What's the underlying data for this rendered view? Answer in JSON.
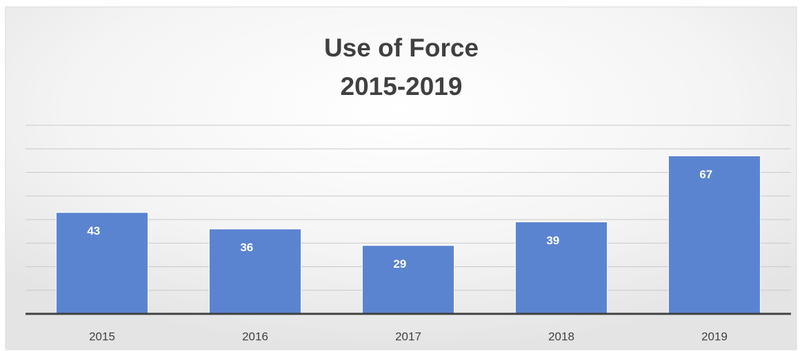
{
  "chart_data": {
    "type": "bar",
    "title": [
      "Use of Force",
      "2015-2019"
    ],
    "categories": [
      "2015",
      "2016",
      "2017",
      "2018",
      "2019"
    ],
    "values": [
      43,
      36,
      29,
      39,
      67
    ],
    "color": "#5b84d0",
    "ylim": [
      0,
      80
    ],
    "yticks": [
      0,
      10,
      20,
      30,
      40,
      50,
      60,
      70,
      80
    ],
    "grid": true
  }
}
